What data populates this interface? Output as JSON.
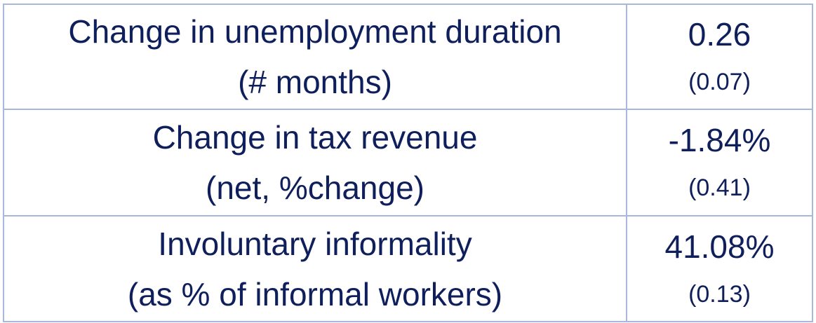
{
  "rows": [
    {
      "label_line1": "Change in unemployment duration",
      "label_line2": "(# months)",
      "value": "0.26",
      "std_error": "(0.07)"
    },
    {
      "label_line1": "Change in tax revenue",
      "label_line2": "(net, %change)",
      "value": "-1.84%",
      "std_error": "(0.41)"
    },
    {
      "label_line1": "Involuntary informality",
      "label_line2": "(as % of informal workers)",
      "value": "41.08%",
      "std_error": "(0.13)"
    }
  ],
  "colors": {
    "text": "#0f1f5c",
    "border": "#a7b8dc"
  }
}
